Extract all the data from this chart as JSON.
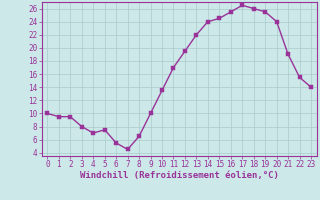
{
  "x": [
    0,
    1,
    2,
    3,
    4,
    5,
    6,
    7,
    8,
    9,
    10,
    11,
    12,
    13,
    14,
    15,
    16,
    17,
    18,
    19,
    20,
    21,
    22,
    23
  ],
  "y": [
    10,
    9.5,
    9.5,
    8,
    7,
    7.5,
    5.5,
    4.5,
    6.5,
    10,
    13.5,
    17,
    19.5,
    22,
    24,
    24.5,
    25.5,
    26.5,
    26,
    25.5,
    24,
    19,
    15.5,
    14
  ],
  "line_color": "#993399",
  "marker_color": "#993399",
  "bg_color": "#cce8e8",
  "grid_color": "#aacccc",
  "xlabel": "Windchill (Refroidissement éolien,°C)",
  "xlabel_color": "#993399",
  "ylim": [
    3.5,
    27
  ],
  "xlim": [
    -0.5,
    23.5
  ],
  "yticks": [
    4,
    6,
    8,
    10,
    12,
    14,
    16,
    18,
    20,
    22,
    24,
    26
  ],
  "xticks": [
    0,
    1,
    2,
    3,
    4,
    5,
    6,
    7,
    8,
    9,
    10,
    11,
    12,
    13,
    14,
    15,
    16,
    17,
    18,
    19,
    20,
    21,
    22,
    23
  ],
  "tick_color": "#993399",
  "tick_fontsize": 5.5,
  "xlabel_fontsize": 6.5,
  "linewidth": 1.0,
  "markersize": 2.5
}
